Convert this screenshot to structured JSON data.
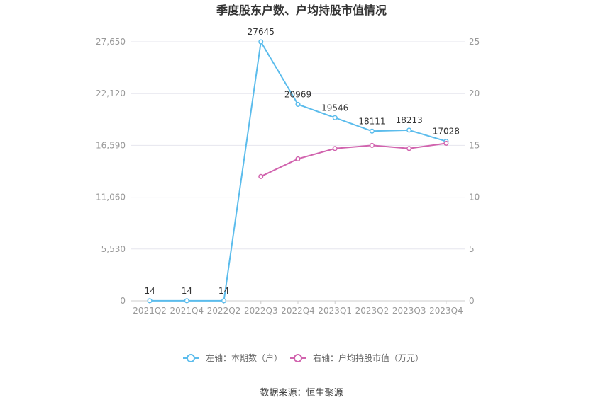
{
  "chart_data": {
    "type": "line",
    "title": "季度股东户数、户均持股市值情况",
    "categories": [
      "2021Q2",
      "2021Q4",
      "2022Q2",
      "2022Q3",
      "2022Q4",
      "2023Q1",
      "2023Q2",
      "2023Q3",
      "2023Q4"
    ],
    "left_axis": {
      "ticks": [
        "0",
        "5,530",
        "11,060",
        "16,590",
        "22,120",
        "27,650"
      ],
      "ylim": [
        0,
        27650
      ]
    },
    "right_axis": {
      "ticks": [
        "0",
        "5",
        "10",
        "15",
        "20",
        "25"
      ],
      "ylim": [
        0,
        25
      ]
    },
    "series": [
      {
        "name": "左轴：本期数（户）",
        "axis": "left",
        "color": "#5bbcec",
        "values": [
          14,
          14,
          14,
          27645,
          20969,
          19546,
          18111,
          18213,
          17028
        ],
        "labels": [
          "14",
          "14",
          "14",
          "27645",
          "20969",
          "19546",
          "18111",
          "18213",
          "17028"
        ]
      },
      {
        "name": "右轴：户均持股市值（万元）",
        "axis": "right",
        "color": "#d163ae",
        "values": [
          null,
          null,
          null,
          12.0,
          13.7,
          14.7,
          15.0,
          14.7,
          15.2
        ]
      }
    ],
    "grid": true,
    "legend_position": "bottom"
  },
  "footer": {
    "source": "数据来源：恒生聚源"
  }
}
